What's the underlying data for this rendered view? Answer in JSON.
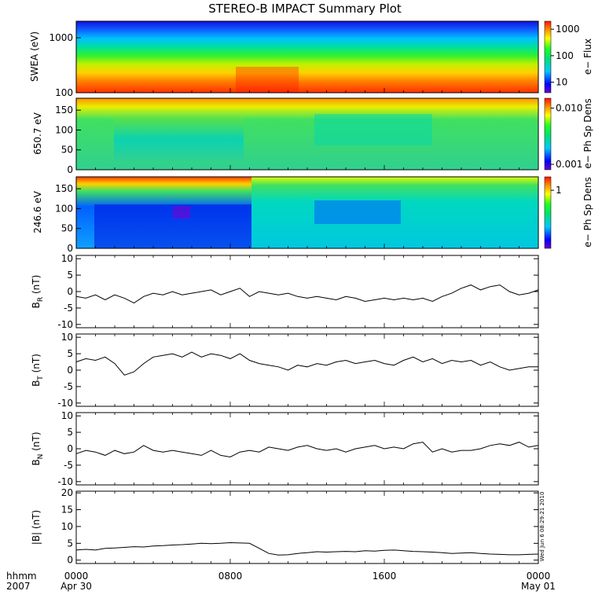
{
  "title": "STEREO-B IMPACT Summary Plot",
  "time_axis": {
    "row1_label": "hhmm",
    "row2_label": "2007",
    "ticks": [
      {
        "hours": 0,
        "label": "0000",
        "date": "Apr 30"
      },
      {
        "hours": 8,
        "label": "0800",
        "date": ""
      },
      {
        "hours": 16,
        "label": "1600",
        "date": ""
      },
      {
        "hours": 24,
        "label": "0000",
        "date": "May 01"
      }
    ],
    "range_hours": [
      0,
      24
    ]
  },
  "timestamp": "Wed Jun  6 08:29:21 2010",
  "spectrograms": [
    {
      "ylabel": "SWEA (eV)",
      "yscale": "log",
      "ylim": [
        100,
        2000
      ],
      "yticks": [
        {
          "v": 100,
          "label": "100"
        },
        {
          "v": 1000,
          "label": "1000"
        }
      ],
      "cbar_label": "e− Flux",
      "cbar_scale": "log",
      "cbar_range": [
        4,
        2000
      ],
      "cbar_ticks": [
        {
          "v": 10,
          "label": "10"
        },
        {
          "v": 100,
          "label": "100"
        },
        {
          "v": 1000,
          "label": "1000"
        }
      ],
      "description": "energy band from ~100 eV (red, high flux) to ~2000 eV (blue, low flux)"
    },
    {
      "ylabel": "650.7 eV",
      "yscale": "linear",
      "ylim": [
        0,
        180
      ],
      "yticks": [
        {
          "v": 0,
          "label": "0"
        },
        {
          "v": 50,
          "label": "50"
        },
        {
          "v": 100,
          "label": "100"
        },
        {
          "v": 150,
          "label": "150"
        }
      ],
      "cbar_label": "e− Ph Sp Dens",
      "cbar_scale": "log",
      "cbar_range": [
        0.0008,
        0.015
      ],
      "cbar_ticks": [
        {
          "v": 0.001,
          "label": "0.001"
        },
        {
          "v": 0.01,
          "label": "0.010"
        }
      ]
    },
    {
      "ylabel": "246.6 eV",
      "yscale": "linear",
      "ylim": [
        0,
        180
      ],
      "yticks": [
        {
          "v": 0,
          "label": "0"
        },
        {
          "v": 50,
          "label": "50"
        },
        {
          "v": 100,
          "label": "100"
        },
        {
          "v": 150,
          "label": "150"
        }
      ],
      "cbar_label": "e− Ph Sp Dens",
      "cbar_scale": "log",
      "cbar_range": [
        0.05,
        2
      ],
      "cbar_ticks": [
        {
          "v": 1,
          "label": "1"
        }
      ]
    }
  ],
  "chart_data": [
    {
      "type": "line",
      "ylabel": "B",
      "ylabel_sub": "R",
      "ylabel_unit": " (nT)",
      "ylim": [
        -11,
        11
      ],
      "yticks": [
        -10,
        -5,
        0,
        5,
        10
      ],
      "x": [
        0,
        0.5,
        1,
        1.5,
        2,
        2.5,
        3,
        3.5,
        4,
        4.5,
        5,
        5.5,
        6,
        6.5,
        7,
        7.5,
        8,
        8.5,
        9,
        9.5,
        10,
        10.5,
        11,
        11.5,
        12,
        12.5,
        13,
        13.5,
        14,
        14.5,
        15,
        15.5,
        16,
        16.5,
        17,
        17.5,
        18,
        18.5,
        19,
        19.5,
        20,
        20.5,
        21,
        21.5,
        22,
        22.5,
        23,
        23.5,
        24
      ],
      "y": [
        -1.5,
        -2,
        -1,
        -2.5,
        -1,
        -2,
        -3.5,
        -1.5,
        -0.5,
        -1,
        0,
        -1,
        -0.5,
        0,
        0.5,
        -1,
        0,
        1,
        -1.5,
        0,
        -0.5,
        -1,
        -0.5,
        -1.5,
        -2,
        -1.5,
        -2,
        -2.5,
        -1.5,
        -2,
        -3,
        -2.5,
        -2,
        -2.5,
        -2,
        -2.5,
        -2,
        -3,
        -1.5,
        -0.5,
        1,
        2,
        0.5,
        1.5,
        2,
        0,
        -1,
        -0.5,
        0.5
      ]
    },
    {
      "type": "line",
      "ylabel": "B",
      "ylabel_sub": "T",
      "ylabel_unit": " (nT)",
      "ylim": [
        -11,
        11
      ],
      "yticks": [
        -10,
        -5,
        0,
        5,
        10
      ],
      "x": [
        0,
        0.5,
        1,
        1.5,
        2,
        2.5,
        3,
        3.5,
        4,
        4.5,
        5,
        5.5,
        6,
        6.5,
        7,
        7.5,
        8,
        8.5,
        9,
        9.5,
        10,
        10.5,
        11,
        11.5,
        12,
        12.5,
        13,
        13.5,
        14,
        14.5,
        15,
        15.5,
        16,
        16.5,
        17,
        17.5,
        18,
        18.5,
        19,
        19.5,
        20,
        20.5,
        21,
        21.5,
        22,
        22.5,
        23,
        23.5,
        24
      ],
      "y": [
        2.5,
        3.5,
        3,
        4,
        2,
        -1.5,
        -0.5,
        2,
        4,
        4.5,
        5,
        4,
        5.5,
        4,
        5,
        4.5,
        3.5,
        5,
        3,
        2,
        1.5,
        1,
        0,
        1.5,
        1,
        2,
        1.5,
        2.5,
        3,
        2,
        2.5,
        3,
        2,
        1.5,
        3,
        4,
        2.5,
        3.5,
        2,
        3,
        2.5,
        3,
        1.5,
        2.5,
        1,
        0,
        0.5,
        1,
        1
      ]
    },
    {
      "type": "line",
      "ylabel": "B",
      "ylabel_sub": "N",
      "ylabel_unit": " (nT)",
      "ylim": [
        -11,
        11
      ],
      "yticks": [
        -10,
        -5,
        0,
        5,
        10
      ],
      "x": [
        0,
        0.5,
        1,
        1.5,
        2,
        2.5,
        3,
        3.5,
        4,
        4.5,
        5,
        5.5,
        6,
        6.5,
        7,
        7.5,
        8,
        8.5,
        9,
        9.5,
        10,
        10.5,
        11,
        11.5,
        12,
        12.5,
        13,
        13.5,
        14,
        14.5,
        15,
        15.5,
        16,
        16.5,
        17,
        17.5,
        18,
        18.5,
        19,
        19.5,
        20,
        20.5,
        21,
        21.5,
        22,
        22.5,
        23,
        23.5,
        24
      ],
      "y": [
        -1.5,
        -0.5,
        -1,
        -2,
        -0.5,
        -1.5,
        -1,
        1,
        -0.5,
        -1,
        -0.5,
        -1,
        -1.5,
        -2,
        -0.5,
        -2,
        -2.5,
        -1,
        -0.5,
        -1,
        0.5,
        0,
        -0.5,
        0.5,
        1,
        0,
        -0.5,
        0,
        -1,
        0,
        0.5,
        1,
        0,
        0.5,
        0,
        1.5,
        2,
        -1,
        0,
        -1,
        -0.5,
        -0.5,
        0,
        1,
        1.5,
        1,
        2,
        0.5,
        1
      ]
    },
    {
      "type": "line",
      "ylabel": "|B| (nT)",
      "ylim": [
        -1,
        20.5
      ],
      "yticks": [
        0,
        5,
        10,
        15,
        20
      ],
      "x": [
        0,
        0.5,
        1,
        1.5,
        2,
        2.5,
        3,
        3.5,
        4,
        4.5,
        5,
        5.5,
        6,
        6.5,
        7,
        7.5,
        8,
        8.5,
        9,
        9.5,
        10,
        10.5,
        11,
        11.5,
        12,
        12.5,
        13,
        13.5,
        14,
        14.5,
        15,
        15.5,
        16,
        16.5,
        17,
        17.5,
        18,
        18.5,
        19,
        19.5,
        20,
        20.5,
        21,
        21.5,
        22,
        22.5,
        23,
        23.5,
        24
      ],
      "y": [
        3,
        3.2,
        3,
        3.5,
        3.6,
        3.8,
        4,
        3.9,
        4.2,
        4.3,
        4.5,
        4.6,
        4.8,
        5,
        4.9,
        5,
        5.2,
        5.1,
        5,
        3.5,
        2,
        1.5,
        1.6,
        2,
        2.2,
        2.5,
        2.4,
        2.5,
        2.6,
        2.5,
        2.8,
        2.7,
        2.9,
        3,
        2.8,
        2.6,
        2.5,
        2.4,
        2.2,
        2,
        2.1,
        2.2,
        2,
        1.8,
        1.7,
        1.6,
        1.6,
        1.7,
        1.8
      ]
    }
  ],
  "colors": {
    "line": "#000000",
    "frame": "#000000",
    "background": "#ffffff"
  }
}
